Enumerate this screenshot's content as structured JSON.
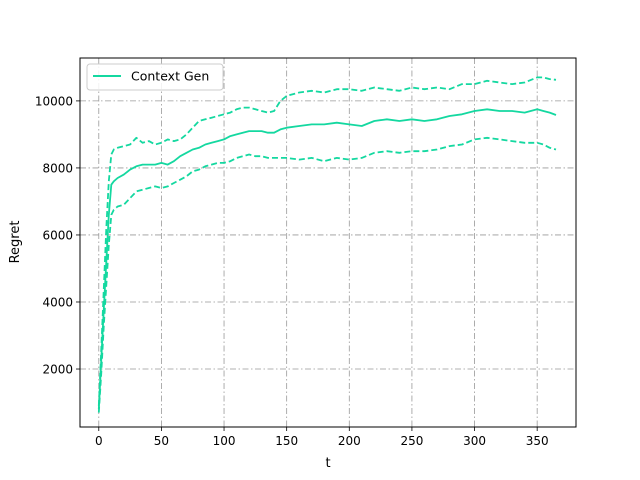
{
  "chart_data": {
    "type": "line",
    "xlabel": "t",
    "ylabel": "Regret",
    "xlim": [
      -15,
      381
    ],
    "ylim": [
      270,
      11280
    ],
    "xticks": [
      0,
      50,
      100,
      150,
      200,
      250,
      300,
      350
    ],
    "yticks": [
      2000,
      4000,
      6000,
      8000,
      10000
    ],
    "grid": true,
    "grid_style": "dash-dot",
    "legend_position": "top-left",
    "series_color": "#14d8a0",
    "series": [
      {
        "name": "Context Gen",
        "style": "solid",
        "in_legend": true,
        "x": [
          0,
          2,
          4,
          6,
          8,
          10,
          12,
          15,
          20,
          25,
          30,
          35,
          40,
          45,
          50,
          55,
          60,
          65,
          70,
          75,
          80,
          85,
          90,
          95,
          100,
          105,
          110,
          115,
          120,
          125,
          130,
          135,
          140,
          145,
          150,
          160,
          170,
          180,
          190,
          200,
          210,
          220,
          230,
          240,
          250,
          260,
          270,
          280,
          290,
          300,
          310,
          320,
          330,
          340,
          350,
          355,
          360,
          365
        ],
        "y": [
          800,
          2300,
          3800,
          5200,
          6600,
          7500,
          7600,
          7700,
          7800,
          7950,
          8050,
          8100,
          8100,
          8100,
          8150,
          8100,
          8200,
          8350,
          8450,
          8550,
          8600,
          8700,
          8750,
          8800,
          8850,
          8950,
          9000,
          9050,
          9100,
          9100,
          9100,
          9050,
          9050,
          9150,
          9200,
          9250,
          9300,
          9300,
          9350,
          9300,
          9250,
          9400,
          9450,
          9400,
          9450,
          9400,
          9450,
          9550,
          9600,
          9700,
          9750,
          9700,
          9700,
          9650,
          9750,
          9700,
          9650,
          9580
        ]
      },
      {
        "name": "",
        "style": "dashed",
        "in_legend": false,
        "x": [
          0,
          2,
          4,
          6,
          8,
          10,
          12,
          15,
          20,
          25,
          30,
          35,
          40,
          45,
          50,
          55,
          60,
          65,
          70,
          75,
          80,
          85,
          90,
          95,
          100,
          105,
          110,
          115,
          120,
          125,
          130,
          135,
          140,
          145,
          150,
          160,
          170,
          180,
          190,
          200,
          210,
          220,
          230,
          240,
          250,
          260,
          270,
          280,
          290,
          300,
          310,
          320,
          330,
          340,
          350,
          355,
          360,
          365
        ],
        "y": [
          900,
          2600,
          4400,
          6200,
          7600,
          8400,
          8550,
          8600,
          8650,
          8700,
          8900,
          8750,
          8800,
          8700,
          8750,
          8850,
          8800,
          8850,
          9000,
          9200,
          9400,
          9450,
          9500,
          9550,
          9600,
          9650,
          9750,
          9800,
          9800,
          9750,
          9700,
          9650,
          9700,
          10000,
          10150,
          10250,
          10300,
          10250,
          10350,
          10350,
          10300,
          10400,
          10350,
          10300,
          10400,
          10350,
          10400,
          10350,
          10500,
          10500,
          10600,
          10550,
          10500,
          10550,
          10700,
          10700,
          10650,
          10630
        ]
      },
      {
        "name": "",
        "style": "dashed",
        "in_legend": false,
        "x": [
          0,
          2,
          4,
          6,
          8,
          10,
          12,
          15,
          20,
          25,
          30,
          35,
          40,
          45,
          50,
          55,
          60,
          65,
          70,
          75,
          80,
          85,
          90,
          95,
          100,
          105,
          110,
          115,
          120,
          125,
          130,
          135,
          140,
          145,
          150,
          160,
          170,
          180,
          190,
          200,
          210,
          220,
          230,
          240,
          250,
          260,
          270,
          280,
          290,
          300,
          310,
          320,
          330,
          340,
          350,
          355,
          360,
          365
        ],
        "y": [
          700,
          1900,
          3300,
          4500,
          5700,
          6600,
          6750,
          6850,
          6900,
          7100,
          7300,
          7350,
          7400,
          7450,
          7400,
          7450,
          7550,
          7650,
          7750,
          7900,
          7950,
          8050,
          8100,
          8150,
          8150,
          8200,
          8300,
          8350,
          8400,
          8350,
          8350,
          8300,
          8300,
          8300,
          8300,
          8250,
          8300,
          8200,
          8300,
          8250,
          8300,
          8450,
          8500,
          8450,
          8500,
          8500,
          8550,
          8650,
          8700,
          8850,
          8900,
          8850,
          8800,
          8750,
          8750,
          8700,
          8600,
          8550
        ]
      }
    ]
  }
}
